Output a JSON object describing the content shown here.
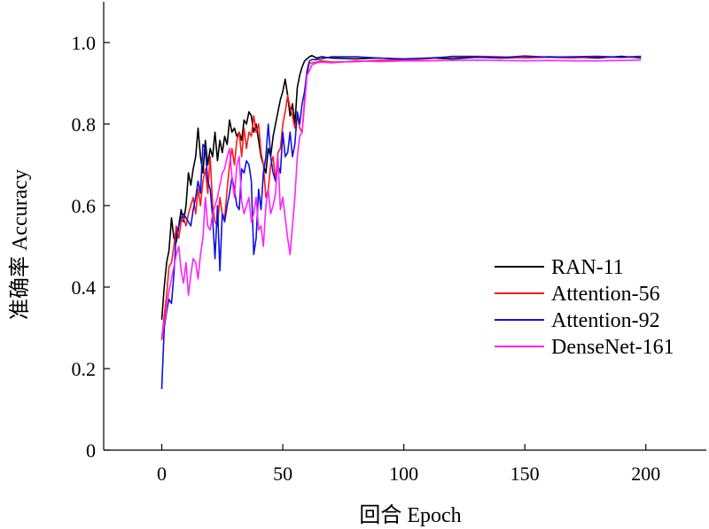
{
  "chart_data": {
    "type": "line",
    "title": "",
    "xlabel": "回合 Epoch",
    "ylabel": "准确率  Accuracy",
    "xlim": [
      -24,
      225
    ],
    "ylim": [
      0,
      1.1
    ],
    "xticks": [
      0,
      50,
      100,
      150,
      200
    ],
    "xtick_labels": [
      "0",
      "50",
      "100",
      "150",
      "200"
    ],
    "yticks": [
      0,
      0.2,
      0.4,
      0.6,
      0.8,
      1.0
    ],
    "ytick_labels": [
      "0",
      "0.2",
      "0.4",
      "0.6",
      "0.8",
      "1.0"
    ],
    "grid": false,
    "legend_position": "right",
    "series": [
      {
        "name": "RAN-11",
        "color": "#000000",
        "x": [
          0,
          1,
          2,
          3,
          4,
          5,
          6,
          7,
          8,
          9,
          10,
          11,
          12,
          13,
          14,
          15,
          16,
          17,
          18,
          19,
          20,
          21,
          22,
          23,
          24,
          25,
          26,
          27,
          28,
          29,
          30,
          31,
          32,
          33,
          34,
          35,
          36,
          37,
          38,
          39,
          40,
          41,
          42,
          43,
          44,
          45,
          46,
          47,
          48,
          49,
          50,
          51,
          52,
          53,
          54,
          55,
          56,
          57,
          58,
          59,
          60,
          61,
          62,
          64,
          66,
          70,
          80,
          90,
          100,
          110,
          120,
          130,
          140,
          150,
          160,
          170,
          180,
          190,
          198
        ],
        "y": [
          0.32,
          0.4,
          0.46,
          0.49,
          0.57,
          0.52,
          0.51,
          0.55,
          0.59,
          0.56,
          0.6,
          0.68,
          0.65,
          0.69,
          0.72,
          0.79,
          0.72,
          0.68,
          0.76,
          0.7,
          0.74,
          0.72,
          0.78,
          0.71,
          0.76,
          0.73,
          0.77,
          0.75,
          0.81,
          0.78,
          0.79,
          0.77,
          0.78,
          0.76,
          0.81,
          0.8,
          0.83,
          0.82,
          0.78,
          0.8,
          0.76,
          0.72,
          0.7,
          0.68,
          0.74,
          0.72,
          0.77,
          0.8,
          0.83,
          0.86,
          0.88,
          0.91,
          0.87,
          0.82,
          0.85,
          0.8,
          0.89,
          0.92,
          0.94,
          0.955,
          0.96,
          0.965,
          0.968,
          0.962,
          0.965,
          0.962,
          0.96,
          0.962,
          0.958,
          0.962,
          0.96,
          0.964,
          0.962,
          0.963,
          0.965,
          0.964,
          0.962,
          0.966,
          0.962
        ]
      },
      {
        "name": "Attention-56",
        "color": "#ff1a1a",
        "x": [
          0,
          1,
          2,
          3,
          4,
          5,
          6,
          7,
          8,
          9,
          10,
          11,
          12,
          13,
          14,
          15,
          16,
          17,
          18,
          19,
          20,
          21,
          22,
          23,
          24,
          25,
          26,
          27,
          28,
          29,
          30,
          31,
          32,
          33,
          34,
          35,
          36,
          37,
          38,
          39,
          40,
          41,
          42,
          43,
          44,
          45,
          46,
          47,
          48,
          49,
          50,
          51,
          52,
          53,
          54,
          55,
          56,
          57,
          58,
          59,
          60,
          61,
          62,
          64,
          66,
          70,
          80,
          90,
          100,
          110,
          120,
          130,
          140,
          150,
          160,
          170,
          180,
          190,
          198
        ],
        "y": [
          0.27,
          0.33,
          0.38,
          0.45,
          0.46,
          0.5,
          0.55,
          0.52,
          0.56,
          0.57,
          0.55,
          0.58,
          0.6,
          0.62,
          0.58,
          0.64,
          0.6,
          0.66,
          0.69,
          0.63,
          0.72,
          0.6,
          0.56,
          0.55,
          0.62,
          0.58,
          0.57,
          0.64,
          0.7,
          0.74,
          0.7,
          0.76,
          0.78,
          0.72,
          0.79,
          0.74,
          0.78,
          0.77,
          0.82,
          0.78,
          0.8,
          0.73,
          0.7,
          0.62,
          0.64,
          0.7,
          0.72,
          0.66,
          0.73,
          0.74,
          0.8,
          0.83,
          0.87,
          0.84,
          0.82,
          0.79,
          0.82,
          0.79,
          0.78,
          0.86,
          0.92,
          0.95,
          0.95,
          0.952,
          0.955,
          0.952,
          0.953,
          0.956,
          0.957,
          0.96,
          0.966,
          0.966,
          0.965,
          0.962,
          0.964,
          0.962,
          0.965,
          0.963,
          0.965
        ]
      },
      {
        "name": "Attention-92",
        "color": "#1010e0",
        "x": [
          0,
          1,
          2,
          3,
          4,
          5,
          6,
          7,
          8,
          9,
          10,
          11,
          12,
          13,
          14,
          15,
          16,
          17,
          18,
          19,
          20,
          21,
          22,
          23,
          24,
          25,
          26,
          27,
          28,
          29,
          30,
          31,
          32,
          33,
          34,
          35,
          36,
          37,
          38,
          39,
          40,
          41,
          42,
          43,
          44,
          45,
          46,
          47,
          48,
          49,
          50,
          51,
          52,
          53,
          54,
          55,
          56,
          57,
          58,
          59,
          60,
          61,
          62,
          64,
          66,
          70,
          80,
          90,
          100,
          110,
          120,
          130,
          140,
          150,
          160,
          170,
          180,
          190,
          198
        ],
        "y": [
          0.15,
          0.3,
          0.34,
          0.37,
          0.36,
          0.43,
          0.53,
          0.55,
          0.57,
          0.58,
          0.57,
          0.56,
          0.55,
          0.59,
          0.62,
          0.66,
          0.63,
          0.75,
          0.74,
          0.66,
          0.64,
          0.57,
          0.47,
          0.6,
          0.44,
          0.58,
          0.56,
          0.6,
          0.63,
          0.67,
          0.64,
          0.6,
          0.59,
          0.69,
          0.68,
          0.71,
          0.7,
          0.66,
          0.48,
          0.52,
          0.64,
          0.59,
          0.68,
          0.72,
          0.8,
          0.72,
          0.68,
          0.66,
          0.7,
          0.68,
          0.78,
          0.72,
          0.73,
          0.78,
          0.72,
          0.75,
          0.83,
          0.8,
          0.85,
          0.88,
          0.93,
          0.955,
          0.958,
          0.958,
          0.96,
          0.965,
          0.965,
          0.962,
          0.96,
          0.962,
          0.965,
          0.965,
          0.963,
          0.967,
          0.964,
          0.965,
          0.966,
          0.964,
          0.966
        ]
      },
      {
        "name": "DenseNet-161",
        "color": "#ff22ff",
        "x": [
          0,
          1,
          2,
          3,
          4,
          5,
          6,
          7,
          8,
          9,
          10,
          11,
          12,
          13,
          14,
          15,
          16,
          17,
          18,
          19,
          20,
          21,
          22,
          23,
          24,
          25,
          26,
          27,
          28,
          29,
          30,
          31,
          32,
          33,
          34,
          35,
          36,
          37,
          38,
          39,
          40,
          41,
          42,
          43,
          44,
          45,
          46,
          47,
          48,
          49,
          50,
          51,
          52,
          53,
          54,
          55,
          56,
          57,
          58,
          59,
          60,
          61,
          62,
          64,
          66,
          70,
          80,
          90,
          100,
          110,
          120,
          130,
          140,
          150,
          160,
          170,
          180,
          190,
          198
        ],
        "y": [
          0.28,
          0.31,
          0.35,
          0.39,
          0.42,
          0.45,
          0.48,
          0.5,
          0.44,
          0.41,
          0.46,
          0.38,
          0.43,
          0.47,
          0.46,
          0.42,
          0.48,
          0.52,
          0.62,
          0.55,
          0.54,
          0.58,
          0.6,
          0.62,
          0.65,
          0.68,
          0.69,
          0.72,
          0.74,
          0.67,
          0.62,
          0.7,
          0.72,
          0.61,
          0.58,
          0.6,
          0.62,
          0.56,
          0.58,
          0.62,
          0.54,
          0.55,
          0.5,
          0.6,
          0.64,
          0.58,
          0.6,
          0.63,
          0.72,
          0.59,
          0.62,
          0.57,
          0.52,
          0.48,
          0.55,
          0.62,
          0.72,
          0.77,
          0.78,
          0.85,
          0.92,
          0.93,
          0.945,
          0.95,
          0.952,
          0.95,
          0.955,
          0.953,
          0.955,
          0.955,
          0.956,
          0.957,
          0.956,
          0.955,
          0.956,
          0.955,
          0.955,
          0.956,
          0.957
        ]
      }
    ]
  }
}
